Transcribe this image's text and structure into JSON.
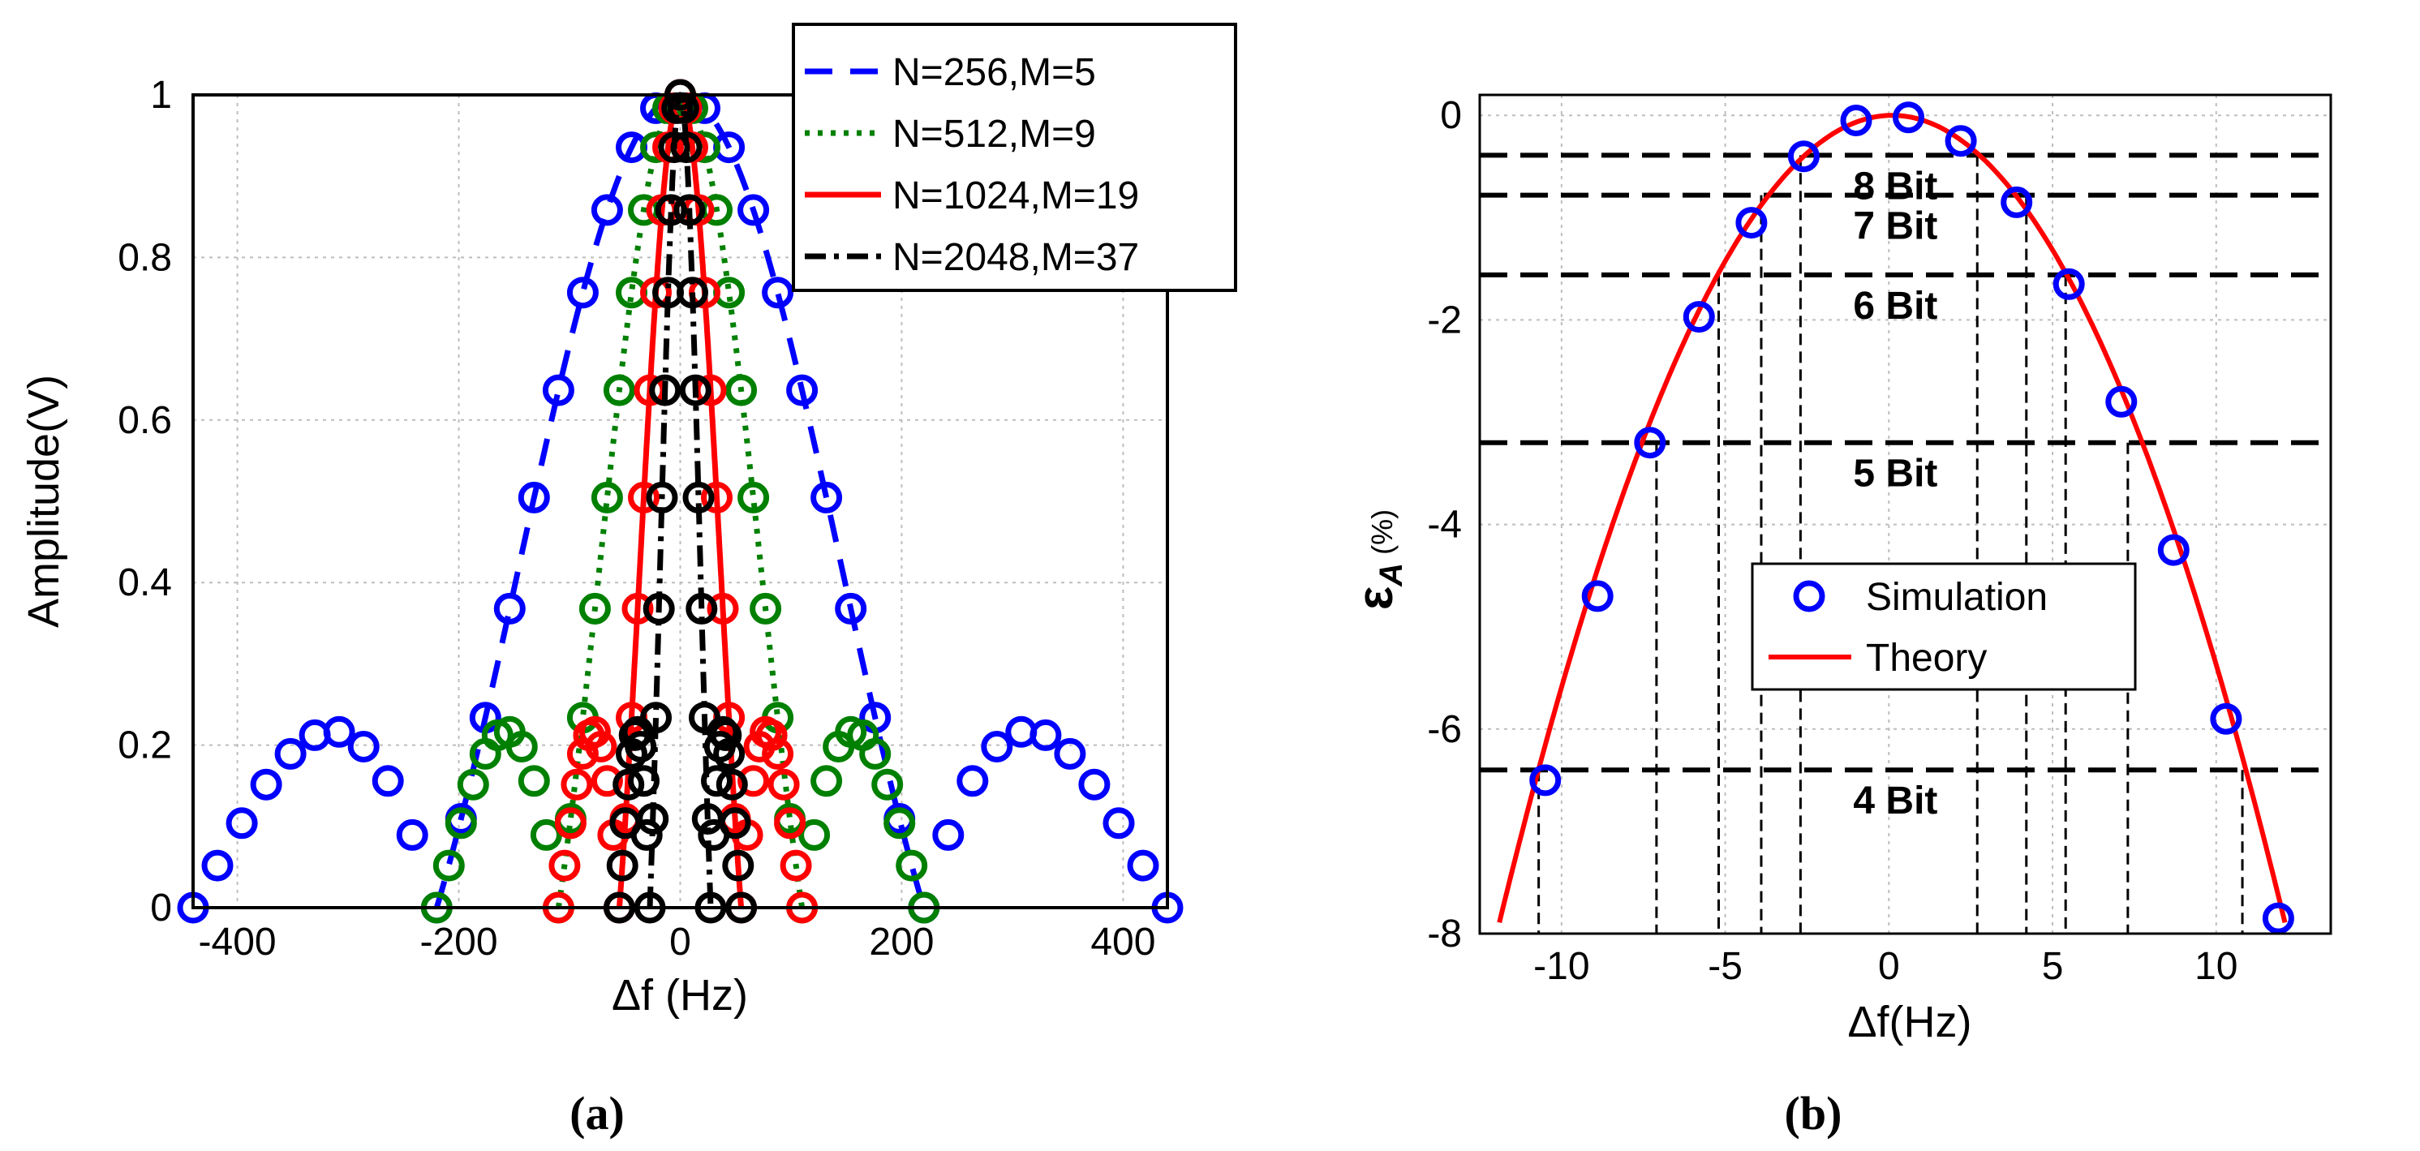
{
  "chart_data": [
    {
      "type": "line",
      "panel_caption": "(a)",
      "title": "",
      "xlabel": "Δf (Hz)",
      "ylabel": "Amplitude(V)",
      "xlim": [
        -440,
        440
      ],
      "ylim": [
        0,
        1
      ],
      "xticks": [
        -400,
        -200,
        0,
        200,
        400
      ],
      "xtick_labels": [
        "-400",
        "-200",
        "0",
        "200",
        "400"
      ],
      "yticks": [
        0,
        0.2,
        0.4,
        0.6,
        0.8,
        1
      ],
      "ytick_labels": [
        "0",
        "0.2",
        "0.4",
        "0.6",
        "0.8",
        "1"
      ],
      "grid": true,
      "legend_position": "top-right",
      "series": [
        {
          "name": "N=256,M=5",
          "color": "#0000ff",
          "line": "dashed",
          "marker": "circle",
          "main_lobe_halfwidth": 220,
          "sidelobe_end": 440,
          "point_spacing": 22
        },
        {
          "name": "N=512,M=9",
          "color": "#008000",
          "line": "dotted",
          "marker": "circle",
          "main_lobe_halfwidth": 110,
          "sidelobe_end": 220,
          "point_spacing": 11
        },
        {
          "name": "N=1024,M=19",
          "color": "#ff0000",
          "line": "solid",
          "marker": "circle",
          "main_lobe_halfwidth": 55,
          "sidelobe_end": 110,
          "point_spacing": 5.5
        },
        {
          "name": "N=2048,M=37",
          "color": "#000000",
          "line": "dashdot",
          "marker": "circle",
          "main_lobe_halfwidth": 27.5,
          "sidelobe_end": 55,
          "point_spacing": 2.75
        }
      ]
    },
    {
      "type": "line",
      "panel_caption": "(b)",
      "title": "",
      "xlabel": "Δf(Hz)",
      "ylabel_symbol": "ε",
      "ylabel_subscript": "A",
      "ylabel_unit": "(%)",
      "xlim": [
        -12.5,
        13.5
      ],
      "ylim": [
        -8,
        0.2
      ],
      "xticks": [
        -10,
        -5,
        0,
        5,
        10
      ],
      "xtick_labels": [
        "-10",
        "-5",
        "0",
        "5",
        "10"
      ],
      "yticks": [
        -8,
        -6,
        -4,
        -2,
        0
      ],
      "ytick_labels": [
        "-8",
        "-6",
        "-4",
        "-2",
        "0"
      ],
      "grid": true,
      "legend_position": "center",
      "series": [
        {
          "name": "Simulation",
          "color": "#0000ff",
          "marker": "circle",
          "x": [
            -10.5,
            -8.9,
            -7.3,
            -4.2,
            -5.8,
            -2.6,
            -1.0,
            0.6,
            2.2,
            3.9,
            5.5,
            7.1,
            8.7,
            10.3,
            11.9
          ],
          "y": [
            -6.5,
            -4.7,
            -3.2,
            -1.05,
            -1.97,
            -0.4,
            -0.05,
            -0.02,
            -0.25,
            -0.85,
            -1.65,
            -2.8,
            -4.25,
            -5.9,
            -7.85
          ]
        },
        {
          "name": "Theory",
          "color": "#ff0000",
          "line": "solid",
          "curve_coeff": -0.0548,
          "x_range": [
            -11.9,
            12.1
          ]
        }
      ],
      "bit_levels": [
        {
          "label": "8 Bit",
          "y": -0.39,
          "x_left": -2.7,
          "x_right": 2.7
        },
        {
          "label": "7 Bit",
          "y": -0.78,
          "x_left": -3.9,
          "x_right": 4.2
        },
        {
          "label": "6 Bit",
          "y": -1.56,
          "x_left": -5.2,
          "x_right": 5.4
        },
        {
          "label": "5 Bit",
          "y": -3.2,
          "x_left": -7.1,
          "x_right": 7.3
        },
        {
          "label": "4 Bit",
          "y": -6.4,
          "x_left": -10.7,
          "x_right": 10.8
        }
      ]
    }
  ]
}
